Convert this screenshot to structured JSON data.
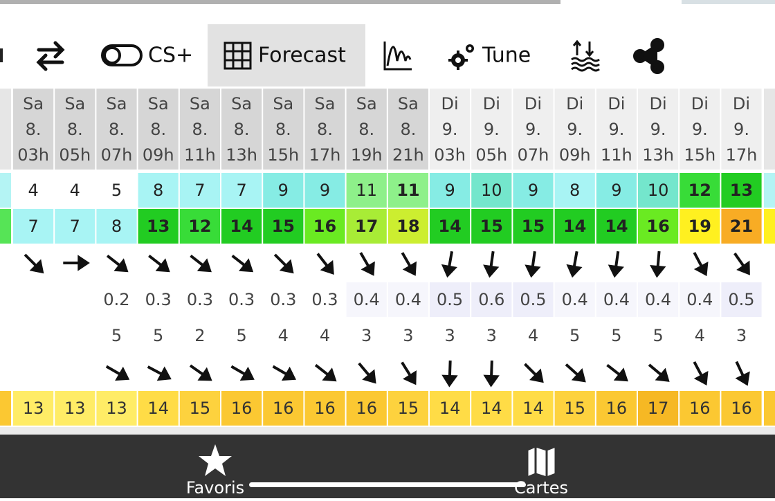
{
  "toolbar": {
    "items": [
      "CS+",
      "Forecast",
      "Tune"
    ]
  },
  "table": {
    "days": [
      "Sa",
      "Sa",
      "Sa",
      "Sa",
      "Sa",
      "Sa",
      "Sa",
      "Sa",
      "Sa",
      "Sa",
      "Di",
      "Di",
      "Di",
      "Di",
      "Di",
      "Di",
      "Di",
      "Di"
    ],
    "dates": [
      "8.",
      "8.",
      "8.",
      "8.",
      "8.",
      "8.",
      "8.",
      "8.",
      "8.",
      "8.",
      "9.",
      "9.",
      "9.",
      "9.",
      "9.",
      "9.",
      "9.",
      "9."
    ],
    "hours": [
      "03h",
      "05h",
      "07h",
      "09h",
      "11h",
      "13h",
      "15h",
      "17h",
      "19h",
      "21h",
      "03h",
      "05h",
      "07h",
      "09h",
      "11h",
      "13h",
      "15h",
      "17h"
    ],
    "wind": [
      4,
      4,
      5,
      8,
      7,
      7,
      9,
      9,
      11,
      11,
      9,
      10,
      9,
      8,
      9,
      10,
      12,
      13
    ],
    "gusts": [
      7,
      7,
      8,
      13,
      12,
      14,
      15,
      16,
      17,
      18,
      14,
      15,
      15,
      14,
      14,
      16,
      19,
      21
    ],
    "wind_dir": [
      45,
      0,
      38,
      38,
      38,
      38,
      45,
      52,
      60,
      60,
      100,
      98,
      98,
      100,
      98,
      95,
      62,
      55
    ],
    "wave_height": [
      null,
      null,
      0.2,
      0.3,
      0.3,
      0.3,
      0.3,
      0.3,
      0.4,
      0.4,
      0.5,
      0.6,
      0.5,
      0.4,
      0.4,
      0.4,
      0.4,
      0.5
    ],
    "wave_period": [
      null,
      null,
      5,
      5,
      2,
      5,
      4,
      4,
      3,
      3,
      3,
      3,
      4,
      5,
      5,
      5,
      4,
      3
    ],
    "wave_dir": [
      null,
      null,
      30,
      28,
      35,
      30,
      30,
      38,
      50,
      58,
      92,
      92,
      45,
      42,
      38,
      40,
      62,
      65
    ],
    "temperature": [
      13,
      13,
      13,
      14,
      15,
      16,
      16,
      16,
      16,
      15,
      14,
      14,
      14,
      15,
      16,
      17,
      16,
      16
    ],
    "wind_colors": [
      [
        0,
        "#ffffff"
      ],
      [
        7,
        "#a8f4f4"
      ],
      [
        9,
        "#86ece4"
      ],
      [
        10,
        "#74e6cc"
      ],
      [
        11,
        "#8ef08a"
      ],
      [
        12,
        "#38dc38"
      ],
      [
        13,
        "#22cc22"
      ],
      [
        16,
        "#6aea22"
      ],
      [
        17,
        "#a8ec36"
      ],
      [
        18,
        "#ccee30"
      ],
      [
        19,
        "#fff020"
      ],
      [
        21,
        "#f8ac24"
      ]
    ],
    "temp_colors": [
      [
        13,
        "#ffec66"
      ],
      [
        14,
        "#ffdc46"
      ],
      [
        15,
        "#fdd23e"
      ],
      [
        16,
        "#fbc832"
      ],
      [
        17,
        "#f6b824"
      ]
    ]
  },
  "nav": [
    "Favoris",
    "Cartes"
  ]
}
